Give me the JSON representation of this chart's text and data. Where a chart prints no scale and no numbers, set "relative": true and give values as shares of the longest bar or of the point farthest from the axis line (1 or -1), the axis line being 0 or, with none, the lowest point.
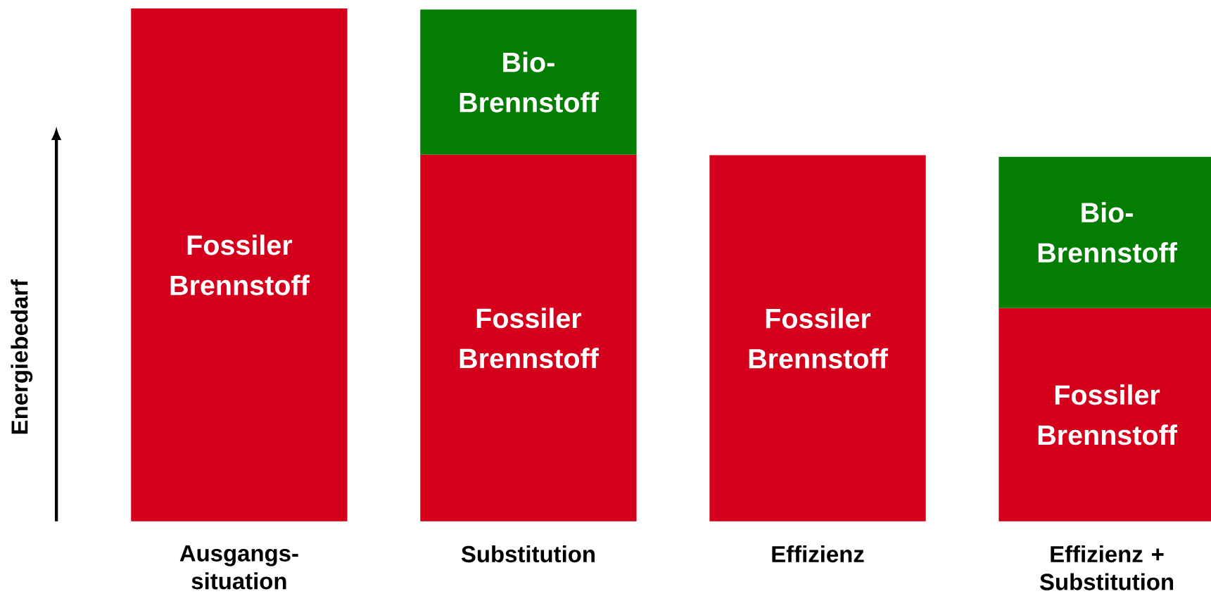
{
  "chart_data": {
    "type": "bar",
    "stacked": true,
    "relative": true,
    "ylabel": "Energiebedarf",
    "categories": [
      "Ausgangs-situation",
      "Substitution",
      "Effizienz",
      "Effizienz + Substitution"
    ],
    "series": [
      {
        "name": "Fossiler Brennstoff",
        "color": "#d5001c",
        "values": [
          1.0,
          0.715,
          0.714,
          0.416
        ]
      },
      {
        "name": "Bio-Brennstoff",
        "color": "#037d02",
        "values": [
          null,
          0.283,
          null,
          0.295
        ]
      }
    ]
  }
}
